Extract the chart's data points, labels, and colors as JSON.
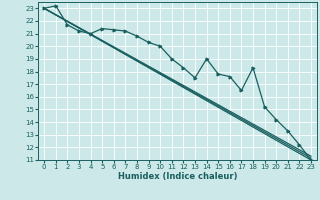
{
  "xlabel": "Humidex (Indice chaleur)",
  "bg_color": "#cce8e8",
  "grid_color": "#ffffff",
  "line_color": "#1a6060",
  "xlim": [
    -0.5,
    23.5
  ],
  "ylim": [
    11,
    23.5
  ],
  "xticks": [
    0,
    1,
    2,
    3,
    4,
    5,
    6,
    7,
    8,
    9,
    10,
    11,
    12,
    13,
    14,
    15,
    16,
    17,
    18,
    19,
    20,
    21,
    22,
    23
  ],
  "yticks": [
    11,
    12,
    13,
    14,
    15,
    16,
    17,
    18,
    19,
    20,
    21,
    22,
    23
  ],
  "data_line_x": [
    0,
    1,
    2,
    3,
    4,
    5,
    6,
    7,
    8,
    9,
    10,
    11,
    12,
    13,
    14,
    15,
    16,
    17,
    18,
    19,
    20,
    21,
    22,
    23
  ],
  "data_line_y": [
    23.0,
    23.2,
    21.7,
    21.2,
    21.0,
    21.4,
    21.3,
    21.2,
    20.8,
    20.3,
    20.0,
    19.0,
    18.3,
    17.5,
    19.0,
    17.8,
    17.6,
    16.5,
    18.3,
    15.2,
    14.2,
    13.3,
    12.2,
    11.0
  ],
  "upper_line_x": [
    0,
    23
  ],
  "upper_line_y": [
    23.0,
    11.3
  ],
  "lower_line_x": [
    0,
    23
  ],
  "lower_line_y": [
    23.0,
    11.0
  ],
  "mid_line_x": [
    0,
    23
  ],
  "mid_line_y": [
    23.0,
    11.15
  ]
}
